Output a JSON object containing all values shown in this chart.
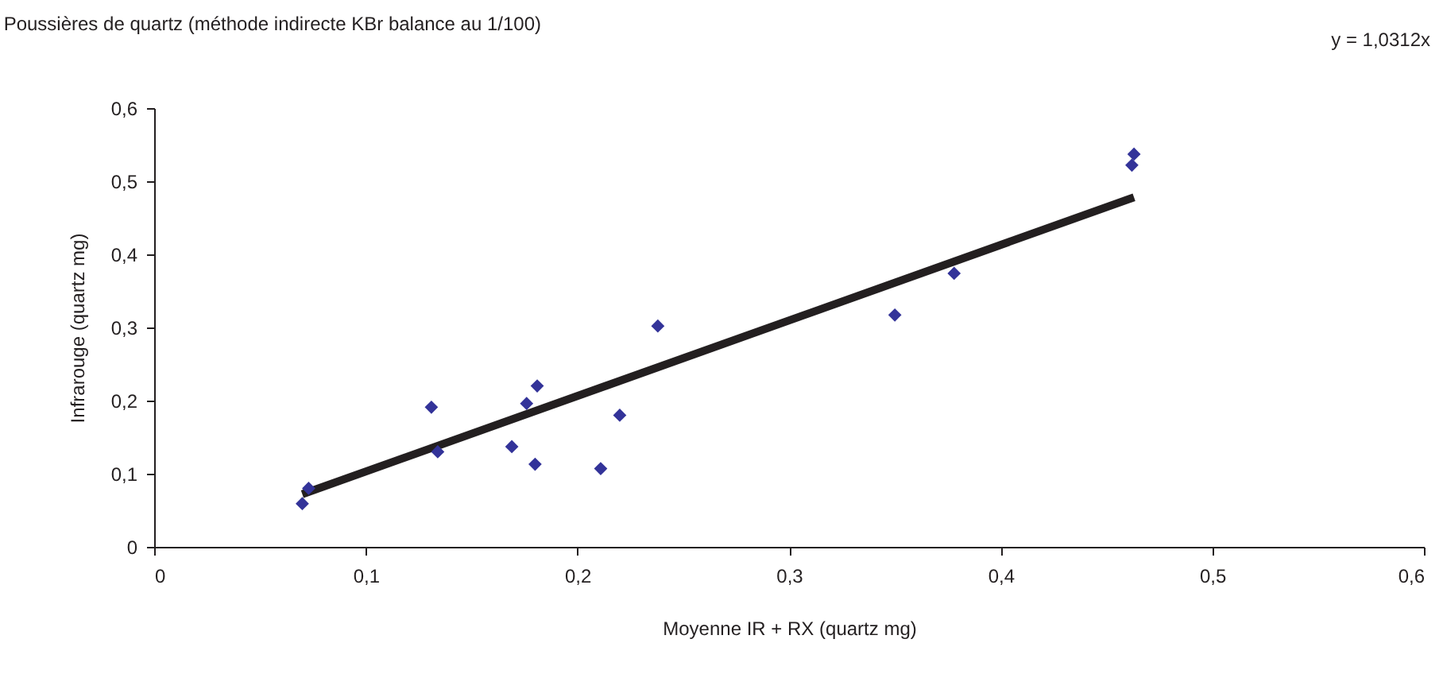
{
  "chart_data": {
    "type": "scatter",
    "title": "Poussières de quartz (méthode indirecte KBr balance au 1/100)",
    "xlabel": "Moyenne IR + RX (quartz mg)",
    "ylabel": "Infrarouge (quartz mg)",
    "annotations": [
      "y = 1,0312x"
    ],
    "grid": false,
    "series": [
      {
        "color": "#333399",
        "marker": "diamond",
        "x": [
          0.07,
          0.073,
          0.131,
          0.134,
          0.169,
          0.176,
          0.18,
          0.181,
          0.211,
          0.22,
          0.238,
          0.35,
          0.378,
          0.462,
          0.463
        ],
        "values": [
          0.059,
          0.08,
          0.191,
          0.13,
          0.137,
          0.196,
          0.113,
          0.22,
          0.107,
          0.18,
          0.302,
          0.317,
          0.374,
          0.522,
          0.537
        ]
      },
      {
        "type": "line",
        "color": "#231f20",
        "x": [
          0.07,
          0.463
        ],
        "values": [
          0.072,
          0.478
        ]
      }
    ],
    "xlim": [
      0,
      0.6
    ],
    "xticks": [
      0,
      {
        "value": 0.1,
        "label": "0,1"
      },
      {
        "value": 0.2,
        "label": "0,2"
      },
      {
        "value": 0.3,
        "label": "0,3"
      },
      {
        "value": 0.4,
        "label": "0,4"
      },
      {
        "value": 0.5,
        "label": "0,5"
      },
      {
        "value": 0.6,
        "label": "0,6"
      }
    ],
    "ylim": [
      0,
      0.6
    ],
    "yticks": [
      0,
      {
        "value": 0.1,
        "label": "0,1"
      },
      {
        "value": 0.2,
        "label": "0,2"
      },
      {
        "value": 0.3,
        "label": "0,3"
      },
      {
        "value": 0.4,
        "label": "0,4"
      },
      {
        "value": 0.5,
        "label": "0,5"
      },
      {
        "value": 0.6,
        "label": "0,6"
      }
    ]
  }
}
